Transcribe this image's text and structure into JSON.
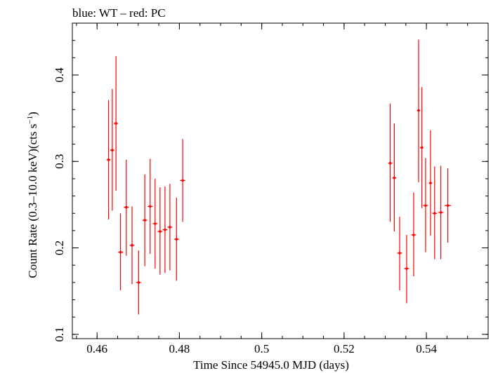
{
  "chart_data": {
    "type": "scatter",
    "title": "blue: WT – red: PC",
    "xlabel": "Time Since 54945.0 MJD (days)",
    "ylabel_main": "Count Rate (0.3–10.0 keV)(cts s",
    "ylabel_sup": "−1",
    "ylabel_end": ")",
    "xlim": [
      0.454,
      0.555
    ],
    "ylim": [
      0.095,
      0.46
    ],
    "x_ticks": [
      0.46,
      0.48,
      0.5,
      0.52,
      0.54
    ],
    "x_tick_labels": [
      "0.46",
      "0.48",
      "0.5",
      "0.52",
      "0.54"
    ],
    "y_ticks": [
      0.1,
      0.2,
      0.3,
      0.4
    ],
    "y_tick_labels": [
      "0.1",
      "0.2",
      "0.3",
      "0.4"
    ],
    "grid": false,
    "series": [
      {
        "color": "#ff0000",
        "points": [
          {
            "x": 0.4628,
            "y": 0.302,
            "xerr": 0.0005,
            "ylo": 0.233,
            "yhi": 0.371
          },
          {
            "x": 0.4637,
            "y": 0.313,
            "xerr": 0.0005,
            "ylo": 0.243,
            "yhi": 0.384
          },
          {
            "x": 0.4646,
            "y": 0.344,
            "xerr": 0.0005,
            "ylo": 0.266,
            "yhi": 0.422
          },
          {
            "x": 0.4657,
            "y": 0.195,
            "xerr": 0.0006,
            "ylo": 0.151,
            "yhi": 0.24
          },
          {
            "x": 0.4671,
            "y": 0.247,
            "xerr": 0.0006,
            "ylo": 0.191,
            "yhi": 0.302
          },
          {
            "x": 0.4685,
            "y": 0.203,
            "xerr": 0.0006,
            "ylo": 0.158,
            "yhi": 0.248
          },
          {
            "x": 0.4701,
            "y": 0.16,
            "xerr": 0.0006,
            "ylo": 0.123,
            "yhi": 0.197
          },
          {
            "x": 0.4716,
            "y": 0.232,
            "xerr": 0.0006,
            "ylo": 0.179,
            "yhi": 0.285
          },
          {
            "x": 0.4729,
            "y": 0.248,
            "xerr": 0.0006,
            "ylo": 0.193,
            "yhi": 0.303
          },
          {
            "x": 0.4741,
            "y": 0.228,
            "xerr": 0.0006,
            "ylo": 0.176,
            "yhi": 0.28
          },
          {
            "x": 0.4753,
            "y": 0.219,
            "xerr": 0.0006,
            "ylo": 0.169,
            "yhi": 0.27
          },
          {
            "x": 0.4765,
            "y": 0.221,
            "xerr": 0.0006,
            "ylo": 0.171,
            "yhi": 0.271
          },
          {
            "x": 0.4777,
            "y": 0.224,
            "xerr": 0.0006,
            "ylo": 0.174,
            "yhi": 0.274
          },
          {
            "x": 0.4793,
            "y": 0.21,
            "xerr": 0.0006,
            "ylo": 0.162,
            "yhi": 0.258
          },
          {
            "x": 0.4808,
            "y": 0.278,
            "xerr": 0.0006,
            "ylo": 0.23,
            "yhi": 0.326
          },
          {
            "x": 0.5312,
            "y": 0.298,
            "xerr": 0.0005,
            "ylo": 0.23,
            "yhi": 0.367
          },
          {
            "x": 0.5322,
            "y": 0.281,
            "xerr": 0.0005,
            "ylo": 0.219,
            "yhi": 0.344
          },
          {
            "x": 0.5335,
            "y": 0.194,
            "xerr": 0.0006,
            "ylo": 0.151,
            "yhi": 0.236
          },
          {
            "x": 0.5352,
            "y": 0.176,
            "xerr": 0.0006,
            "ylo": 0.136,
            "yhi": 0.215
          },
          {
            "x": 0.5369,
            "y": 0.215,
            "xerr": 0.0006,
            "ylo": 0.167,
            "yhi": 0.264
          },
          {
            "x": 0.5381,
            "y": 0.359,
            "xerr": 0.0004,
            "ylo": 0.276,
            "yhi": 0.441
          },
          {
            "x": 0.5389,
            "y": 0.316,
            "xerr": 0.0004,
            "ylo": 0.246,
            "yhi": 0.386
          },
          {
            "x": 0.5398,
            "y": 0.249,
            "xerr": 0.0006,
            "ylo": 0.195,
            "yhi": 0.304
          },
          {
            "x": 0.541,
            "y": 0.275,
            "xerr": 0.0004,
            "ylo": 0.214,
            "yhi": 0.336
          },
          {
            "x": 0.542,
            "y": 0.24,
            "xerr": 0.0006,
            "ylo": 0.187,
            "yhi": 0.294
          },
          {
            "x": 0.5435,
            "y": 0.241,
            "xerr": 0.0006,
            "ylo": 0.187,
            "yhi": 0.295
          },
          {
            "x": 0.5452,
            "y": 0.249,
            "xerr": 0.0008,
            "ylo": 0.206,
            "yhi": 0.292
          }
        ]
      }
    ]
  }
}
